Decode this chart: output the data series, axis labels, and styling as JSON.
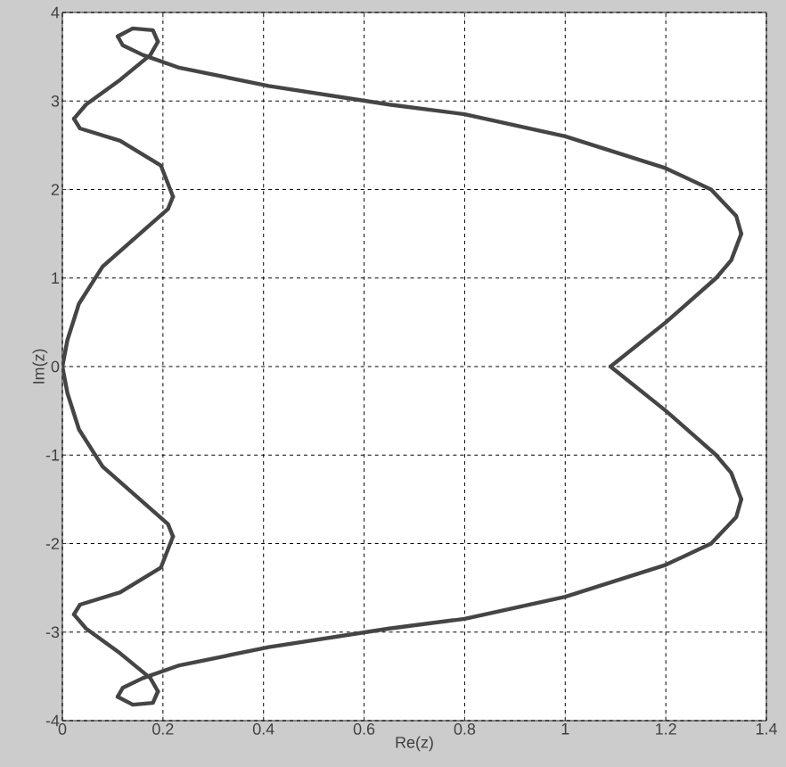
{
  "chart_data": {
    "type": "line",
    "xlabel": "Re(z)",
    "ylabel": "Im(z)",
    "xlim": [
      0,
      1.4
    ],
    "ylim": [
      -4,
      4
    ],
    "xticks": [
      0,
      0.2,
      0.4,
      0.6,
      0.8,
      1,
      1.2,
      1.4
    ],
    "yticks": [
      -4,
      -3,
      -2,
      -1,
      0,
      1,
      2,
      3,
      4
    ],
    "grid": true,
    "line_style": "solid",
    "marker": "none",
    "series": [
      {
        "color": "#454545",
        "x": [
          0.22,
          0.21,
          0.15,
          0.08,
          0.033,
          0.01,
          0,
          0.01,
          0.033,
          0.08,
          0.15,
          0.21,
          0.22
        ],
        "values": [
          -1.92,
          -1.78,
          -1.48,
          -1.13,
          -0.71,
          -0.3,
          0,
          0.3,
          0.71,
          1.13,
          1.48,
          1.78,
          1.92
        ]
      },
      {
        "color": "#454545",
        "x": [
          0.22,
          0.196,
          0.115,
          0.035,
          0.023
        ],
        "values": [
          1.92,
          2.27,
          2.55,
          2.69,
          2.8
        ]
      },
      {
        "color": "#454545",
        "x": [
          0.023,
          0.047,
          0.115,
          0.175,
          0.19
        ],
        "values": [
          2.8,
          2.96,
          3.24,
          3.52,
          3.67
        ]
      },
      {
        "color": "#454545",
        "x": [
          0.19,
          0.18,
          0.14,
          0.11
        ],
        "values": [
          3.67,
          3.8,
          3.82,
          3.73
        ]
      },
      {
        "color": "#454545",
        "x": [
          0.11,
          0.12,
          0.16,
          0.23,
          0.41,
          0.65,
          0.8,
          1.0,
          1.2,
          1.29,
          1.34,
          1.35
        ],
        "values": [
          3.73,
          3.63,
          3.52,
          3.38,
          3.17,
          2.96,
          2.85,
          2.6,
          2.24,
          2.0,
          1.7,
          1.5
        ]
      },
      {
        "color": "#454545",
        "x": [
          1.35,
          1.33,
          1.3,
          1.2,
          1.09
        ],
        "values": [
          1.5,
          1.2,
          1.0,
          0.5,
          0
        ]
      },
      {
        "color": "#454545",
        "x": [
          1.09,
          1.2,
          1.3,
          1.33,
          1.35
        ],
        "values": [
          0,
          -0.5,
          -1.0,
          -1.2,
          -1.5
        ]
      },
      {
        "color": "#454545",
        "x": [
          1.35,
          1.34,
          1.29,
          1.2,
          1.0,
          0.8,
          0.65,
          0.41,
          0.23,
          0.16,
          0.12,
          0.11
        ],
        "values": [
          -1.5,
          -1.7,
          -2.0,
          -2.24,
          -2.6,
          -2.85,
          -2.96,
          -3.17,
          -3.38,
          -3.52,
          -3.63,
          -3.73
        ]
      },
      {
        "color": "#454545",
        "x": [
          0.11,
          0.14,
          0.18,
          0.19
        ],
        "values": [
          -3.73,
          -3.82,
          -3.8,
          -3.67
        ]
      },
      {
        "color": "#454545",
        "x": [
          0.19,
          0.175,
          0.115,
          0.047,
          0.023
        ],
        "values": [
          -3.67,
          -3.52,
          -3.24,
          -2.96,
          -2.8
        ]
      },
      {
        "color": "#454545",
        "x": [
          0.023,
          0.035,
          0.115,
          0.196,
          0.22
        ],
        "values": [
          -2.8,
          -2.69,
          -2.55,
          -2.27,
          -1.92
        ]
      }
    ]
  }
}
